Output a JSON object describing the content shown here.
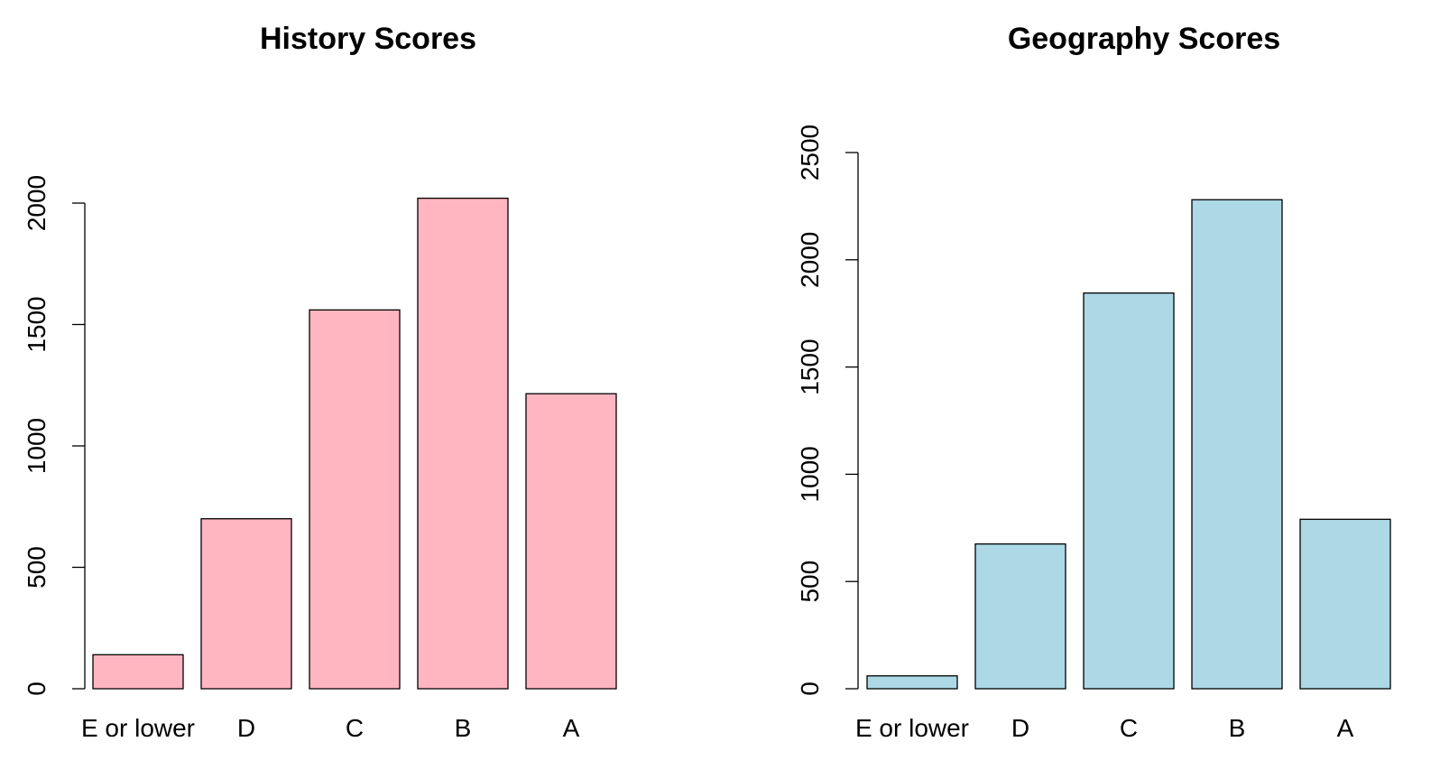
{
  "chart_data": [
    {
      "type": "bar",
      "title": "History Scores",
      "categories": [
        "E or lower",
        "D",
        "C",
        "B",
        "A"
      ],
      "values": [
        140,
        700,
        1560,
        2020,
        1215
      ],
      "ylim": [
        0,
        2000
      ],
      "yticks": [
        "0",
        "500",
        "1000",
        "1500",
        "2000"
      ],
      "bar_color": "#FFB6C1",
      "xlabel": "",
      "ylabel": ""
    },
    {
      "type": "bar",
      "title": "Geography Scores",
      "categories": [
        "E or lower",
        "D",
        "C",
        "B",
        "A"
      ],
      "values": [
        60,
        675,
        1845,
        2280,
        790
      ],
      "ylim": [
        0,
        2500
      ],
      "yticks": [
        "0",
        "500",
        "1000",
        "1500",
        "2000",
        "2500"
      ],
      "bar_color": "#ADD8E6",
      "xlabel": "",
      "ylabel": ""
    }
  ]
}
